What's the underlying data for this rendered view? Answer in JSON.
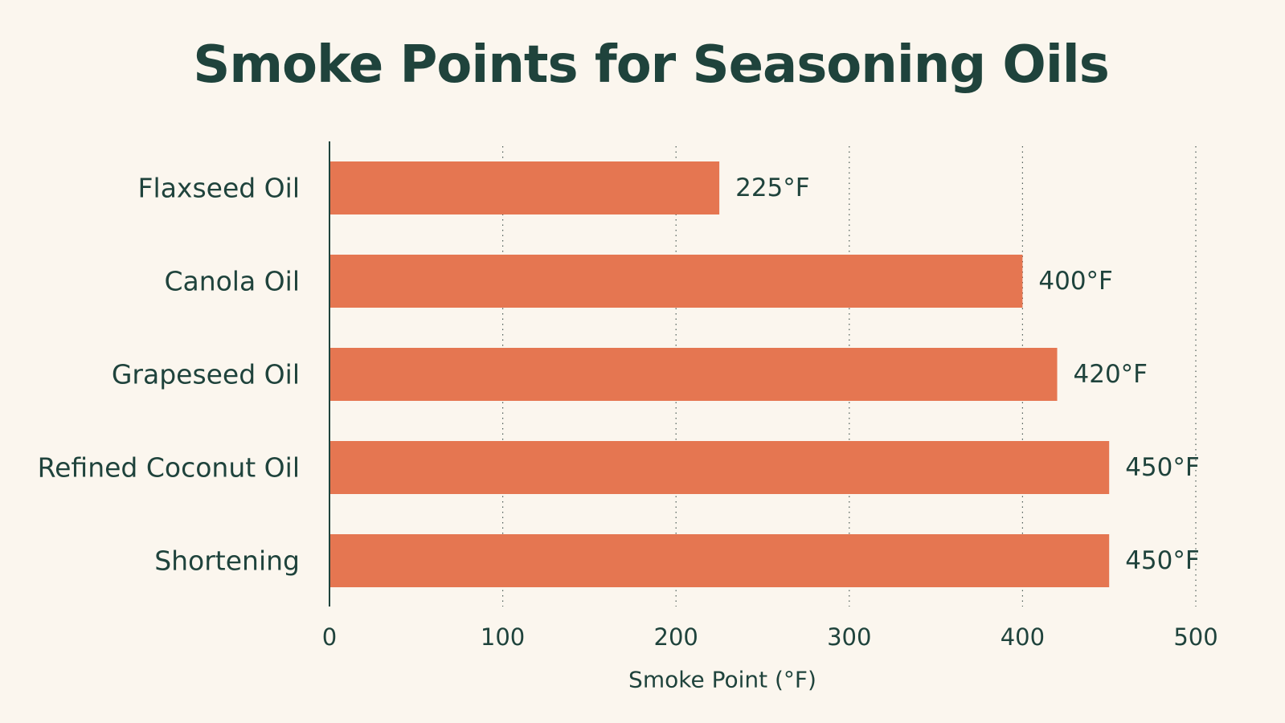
{
  "chart_data": {
    "type": "bar",
    "orientation": "horizontal",
    "title": "Smoke Points for Seasoning Oils",
    "xlabel": "Smoke Point (°F)",
    "ylabel": "",
    "categories": [
      "Flaxseed Oil",
      "Canola Oil",
      "Grapeseed Oil",
      "Refined Coconut Oil",
      "Shortening"
    ],
    "values": [
      225,
      400,
      420,
      450,
      450
    ],
    "value_labels": [
      "225°F",
      "400°F",
      "420°F",
      "450°F",
      "450°F"
    ],
    "xlim": [
      0,
      500
    ],
    "xticks": [
      "0",
      "100",
      "200",
      "300",
      "400",
      "500"
    ],
    "tick_values": [
      0,
      100,
      200,
      300,
      400,
      500
    ],
    "grid": "vertical dotted",
    "bar_color": "#e57651",
    "text_color": "#1f433c",
    "background_color": "#fbf6ee"
  }
}
